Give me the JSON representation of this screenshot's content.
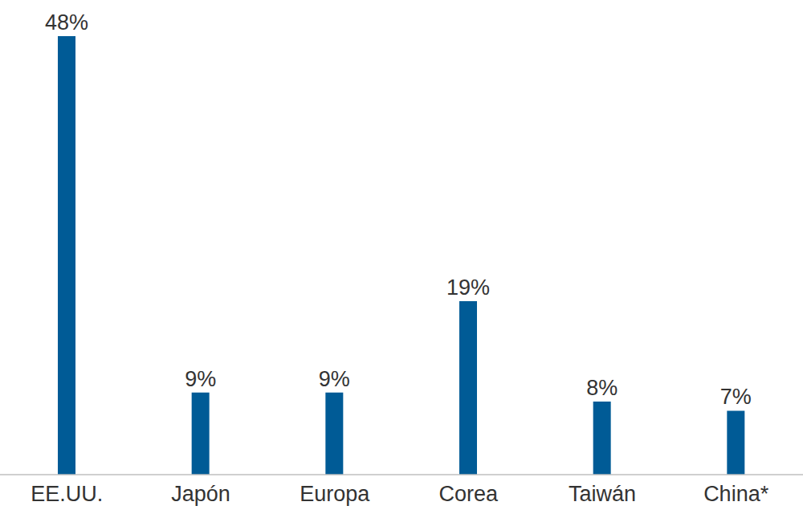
{
  "chart_data": {
    "type": "bar",
    "categories": [
      "EE.UU.",
      "Japón",
      "Europa",
      "Corea",
      "Taiwán",
      "China*"
    ],
    "values": [
      48,
      9,
      9,
      19,
      8,
      7
    ],
    "value_labels": [
      "48%",
      "9%",
      "9%",
      "19%",
      "8%",
      "7%"
    ],
    "color": "#005b96",
    "ylim": [
      0,
      48
    ],
    "data_labels": true,
    "tick_labels": "x",
    "grid": false
  }
}
